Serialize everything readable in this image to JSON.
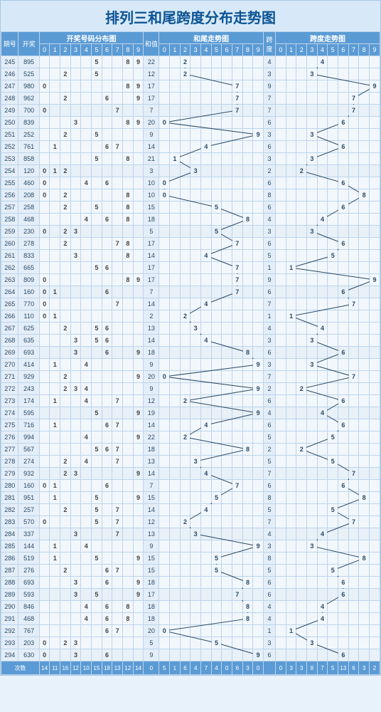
{
  "title": "排列三和尾跨度分布走势图",
  "headers": {
    "issue": "期号",
    "draw": "开奖",
    "dist_group": "开奖号码分布图",
    "sum": "和值",
    "tail_group": "和尾走势图",
    "span": "跨度",
    "span_group": "跨度走势图",
    "digits": [
      "0",
      "1",
      "2",
      "3",
      "4",
      "5",
      "6",
      "7",
      "8",
      "9"
    ]
  },
  "footer_label": "次数",
  "footer_dist": [
    14,
    11,
    16,
    12,
    10,
    15,
    18,
    13,
    12,
    14
  ],
  "footer_tail": [
    5,
    1,
    6,
    4,
    7,
    4,
    0,
    6,
    3,
    0
  ],
  "footer_span": [
    0,
    3,
    3,
    8,
    7,
    5,
    13,
    6,
    3,
    2
  ],
  "line_color": "#2b4a66",
  "rows": [
    {
      "i": "245",
      "d": "895",
      "h": [
        8,
        9,
        5
      ],
      "s": 22,
      "t": 2,
      "k": 4
    },
    {
      "i": "246",
      "d": "525",
      "h": [
        5,
        2,
        5
      ],
      "s": 12,
      "t": 2,
      "k": 3
    },
    {
      "i": "247",
      "d": "980",
      "h": [
        9,
        8,
        0
      ],
      "s": 17,
      "t": 7,
      "k": 9
    },
    {
      "i": "248",
      "d": "962",
      "h": [
        9,
        6,
        2
      ],
      "s": 17,
      "t": 7,
      "k": 7
    },
    {
      "i": "249",
      "d": "700",
      "h": [
        7,
        0,
        0
      ],
      "s": 7,
      "t": 7,
      "k": 7
    },
    {
      "i": "250",
      "d": "839",
      "h": [
        8,
        3,
        9
      ],
      "s": 20,
      "t": 0,
      "k": 6
    },
    {
      "i": "251",
      "d": "252",
      "h": [
        2,
        5,
        2
      ],
      "s": 9,
      "t": 9,
      "k": 3
    },
    {
      "i": "252",
      "d": "761",
      "h": [
        7,
        6,
        1
      ],
      "s": 14,
      "t": 4,
      "k": 6
    },
    {
      "i": "253",
      "d": "858",
      "h": [
        8,
        5,
        8
      ],
      "s": 21,
      "t": 1,
      "k": 3
    },
    {
      "i": "254",
      "d": "120",
      "h": [
        1,
        2,
        0
      ],
      "s": 3,
      "t": 3,
      "k": 2
    },
    {
      "i": "255",
      "d": "460",
      "h": [
        4,
        6,
        0
      ],
      "s": 10,
      "t": 0,
      "k": 6
    },
    {
      "i": "256",
      "d": "208",
      "h": [
        2,
        0,
        8
      ],
      "s": 10,
      "t": 0,
      "k": 8
    },
    {
      "i": "257",
      "d": "258",
      "h": [
        2,
        5,
        8
      ],
      "s": 15,
      "t": 5,
      "k": 6
    },
    {
      "i": "258",
      "d": "468",
      "h": [
        4,
        6,
        8
      ],
      "s": 18,
      "t": 8,
      "k": 4
    },
    {
      "i": "259",
      "d": "230",
      "h": [
        2,
        3,
        0
      ],
      "s": 5,
      "t": 5,
      "k": 3
    },
    {
      "i": "260",
      "d": "278",
      "h": [
        2,
        7,
        8
      ],
      "s": 17,
      "t": 7,
      "k": 6
    },
    {
      "i": "261",
      "d": "833",
      "h": [
        8,
        3,
        3
      ],
      "s": 14,
      "t": 4,
      "k": 5
    },
    {
      "i": "262",
      "d": "665",
      "h": [
        6,
        6,
        5
      ],
      "s": 17,
      "t": 7,
      "k": 1
    },
    {
      "i": "263",
      "d": "809",
      "h": [
        8,
        0,
        9
      ],
      "s": 17,
      "t": 7,
      "k": 9
    },
    {
      "i": "264",
      "d": "160",
      "h": [
        1,
        6,
        0
      ],
      "s": 7,
      "t": 7,
      "k": 6
    },
    {
      "i": "265",
      "d": "770",
      "h": [
        7,
        7,
        0
      ],
      "s": 14,
      "t": 4,
      "k": 7
    },
    {
      "i": "266",
      "d": "110",
      "h": [
        1,
        1,
        0
      ],
      "s": 2,
      "t": 2,
      "k": 1
    },
    {
      "i": "267",
      "d": "625",
      "h": [
        6,
        2,
        5
      ],
      "s": 13,
      "t": 3,
      "k": 4
    },
    {
      "i": "268",
      "d": "635",
      "h": [
        6,
        3,
        5
      ],
      "s": 14,
      "t": 4,
      "k": 3
    },
    {
      "i": "269",
      "d": "693",
      "h": [
        6,
        9,
        3
      ],
      "s": 18,
      "t": 8,
      "k": 6
    },
    {
      "i": "270",
      "d": "414",
      "h": [
        4,
        1,
        4
      ],
      "s": 9,
      "t": 9,
      "k": 3
    },
    {
      "i": "271",
      "d": "929",
      "h": [
        9,
        2,
        9
      ],
      "s": 20,
      "t": 0,
      "k": 7
    },
    {
      "i": "272",
      "d": "243",
      "h": [
        2,
        4,
        3
      ],
      "s": 9,
      "t": 9,
      "k": 2
    },
    {
      "i": "273",
      "d": "174",
      "h": [
        1,
        7,
        4
      ],
      "s": 12,
      "t": 2,
      "k": 6
    },
    {
      "i": "274",
      "d": "595",
      "h": [
        5,
        9,
        5
      ],
      "s": 19,
      "t": 9,
      "k": 4
    },
    {
      "i": "275",
      "d": "716",
      "h": [
        7,
        1,
        6
      ],
      "s": 14,
      "t": 4,
      "k": 6
    },
    {
      "i": "276",
      "d": "994",
      "h": [
        9,
        9,
        4
      ],
      "s": 22,
      "t": 2,
      "k": 5
    },
    {
      "i": "277",
      "d": "567",
      "h": [
        5,
        6,
        7
      ],
      "s": 18,
      "t": 8,
      "k": 2
    },
    {
      "i": "278",
      "d": "274",
      "h": [
        2,
        7,
        4
      ],
      "s": 13,
      "t": 3,
      "k": 5
    },
    {
      "i": "279",
      "d": "932",
      "h": [
        9,
        3,
        2
      ],
      "s": 14,
      "t": 4,
      "k": 7
    },
    {
      "i": "280",
      "d": "160",
      "h": [
        1,
        6,
        0
      ],
      "s": 7,
      "t": 7,
      "k": 6
    },
    {
      "i": "281",
      "d": "951",
      "h": [
        9,
        5,
        1
      ],
      "s": 15,
      "t": 5,
      "k": 8
    },
    {
      "i": "282",
      "d": "257",
      "h": [
        2,
        5,
        7
      ],
      "s": 14,
      "t": 4,
      "k": 5
    },
    {
      "i": "283",
      "d": "570",
      "h": [
        5,
        7,
        0
      ],
      "s": 12,
      "t": 2,
      "k": 7
    },
    {
      "i": "284",
      "d": "337",
      "h": [
        3,
        3,
        7
      ],
      "s": 13,
      "t": 3,
      "k": 4
    },
    {
      "i": "285",
      "d": "144",
      "h": [
        1,
        4,
        4
      ],
      "s": 9,
      "t": 9,
      "k": 3
    },
    {
      "i": "286",
      "d": "519",
      "h": [
        5,
        1,
        9
      ],
      "s": 15,
      "t": 5,
      "k": 8
    },
    {
      "i": "287",
      "d": "276",
      "h": [
        2,
        7,
        6
      ],
      "s": 15,
      "t": 5,
      "k": 5
    },
    {
      "i": "288",
      "d": "693",
      "h": [
        6,
        9,
        3
      ],
      "s": 18,
      "t": 8,
      "k": 6
    },
    {
      "i": "289",
      "d": "593",
      "h": [
        5,
        9,
        3
      ],
      "s": 17,
      "t": 7,
      "k": 6
    },
    {
      "i": "290",
      "d": "846",
      "h": [
        8,
        4,
        6
      ],
      "s": 18,
      "t": 8,
      "k": 4
    },
    {
      "i": "291",
      "d": "468",
      "h": [
        4,
        6,
        8
      ],
      "s": 18,
      "t": 8,
      "k": 4
    },
    {
      "i": "292",
      "d": "767",
      "h": [
        7,
        6,
        7
      ],
      "s": 20,
      "t": 0,
      "k": 1
    },
    {
      "i": "293",
      "d": "203",
      "h": [
        2,
        0,
        3
      ],
      "s": 5,
      "t": 5,
      "k": 3
    },
    {
      "i": "294",
      "d": "630",
      "h": [
        6,
        3,
        0
      ],
      "s": 9,
      "t": 9,
      "k": 6
    }
  ]
}
